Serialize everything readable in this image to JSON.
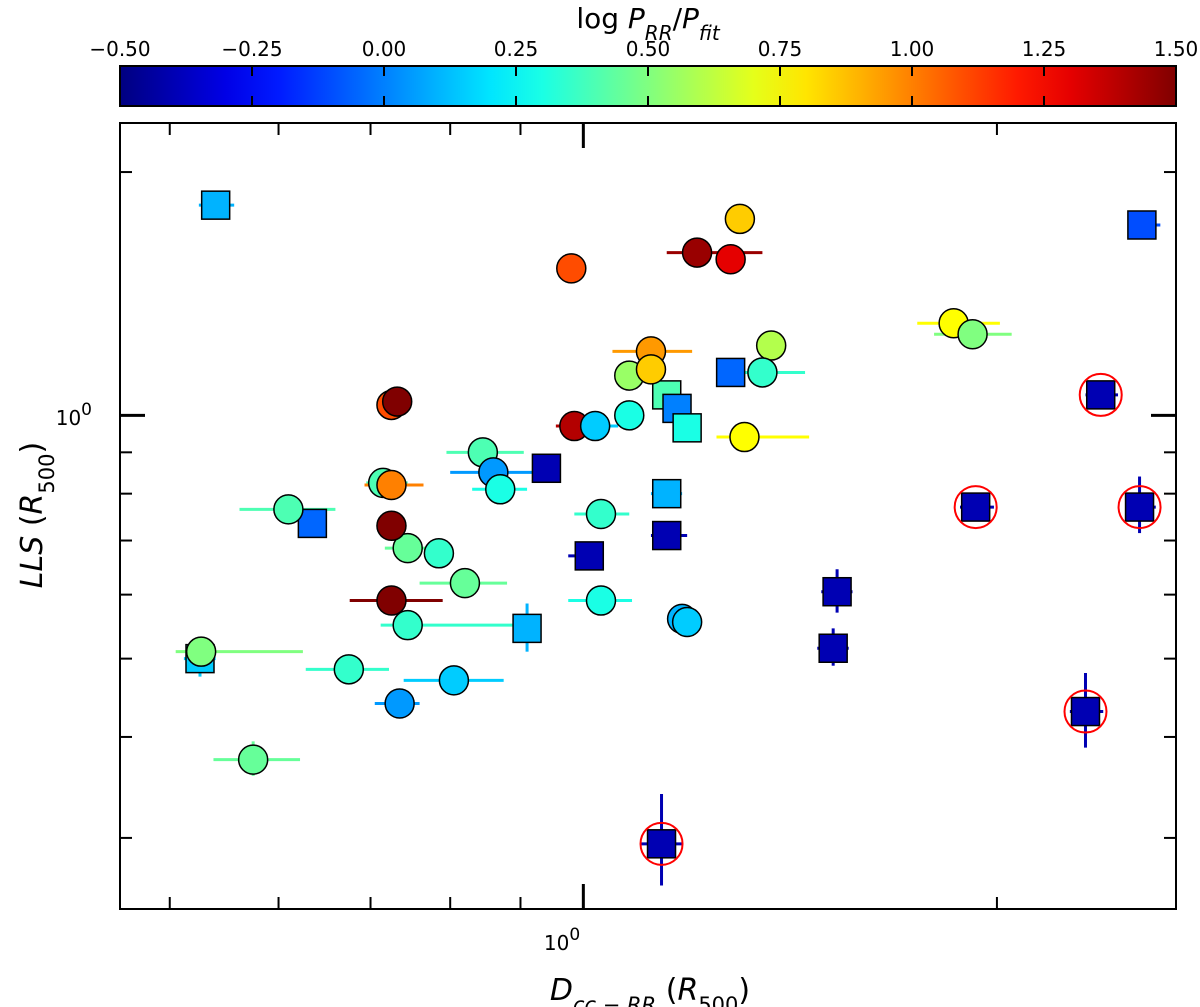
{
  "chart_data": {
    "type": "scatter",
    "colorbar": {
      "title_parts": [
        "log ",
        "P",
        "RR",
        "/",
        "P",
        "fit"
      ],
      "vmin": -0.5,
      "vmax": 1.5,
      "colormap": "jet",
      "ticks": [
        -0.5,
        -0.25,
        0.0,
        0.25,
        0.5,
        0.75,
        1.0,
        1.25,
        1.5
      ],
      "tick_labels": [
        "−0.50",
        "−0.25",
        "0.00",
        "0.25",
        "0.50",
        "0.75",
        "1.00",
        "1.25",
        "1.50"
      ]
    },
    "x_axis": {
      "label_parts": [
        "D",
        "cc − RR",
        " (",
        "R",
        "500",
        ")"
      ],
      "scale": "log",
      "range": [
        0.46,
        2.7
      ],
      "tick_label": "10",
      "tick_label_exp": "0"
    },
    "y_axis": {
      "label_parts": [
        "LLS",
        " (",
        "R",
        "500",
        ")"
      ],
      "scale": "log",
      "range": [
        0.245,
        2.3
      ],
      "tick_label": "10",
      "tick_label_exp": "0"
    },
    "marker_stroke": "#000000",
    "highlight_color": "#ff0000",
    "series": [
      {
        "marker": "square",
        "points": [
          {
            "x": 0.54,
            "y": 1.82,
            "c": 0.1,
            "xerr": [
              0.525,
              0.557
            ]
          },
          {
            "x": 0.635,
            "y": 0.735,
            "c": -0.05,
            "xerr": [
              0.625,
              0.645
            ]
          },
          {
            "x": 0.526,
            "y": 0.5,
            "c": 0.15,
            "xerr": [
              0.512,
              0.54
            ],
            "yerr": [
              0.475,
              0.525
            ]
          },
          {
            "x": 0.91,
            "y": 0.545,
            "c": 0.1,
            "xerr": [
              0.9,
              0.92
            ],
            "yerr": [
              0.51,
              0.585
            ]
          },
          {
            "x": 0.94,
            "y": 0.86,
            "c": -0.4,
            "xerr": [
              0.925,
              0.96
            ],
            "yerr": [
              0.84,
              0.885
            ]
          },
          {
            "x": 1.01,
            "y": 0.67,
            "c": -0.4,
            "xerr": [
              0.975,
              1.035
            ]
          },
          {
            "x": 1.15,
            "y": 0.8,
            "c": 0.1,
            "xerr": [
              1.12,
              1.18
            ]
          },
          {
            "x": 1.15,
            "y": 0.71,
            "c": -0.4,
            "xerr": [
              1.12,
              1.19
            ]
          },
          {
            "x": 1.15,
            "y": 1.06,
            "c": 0.4,
            "xerr": [
              1.13,
              1.17
            ]
          },
          {
            "x": 1.17,
            "y": 1.02,
            "c": 0.0
          },
          {
            "x": 1.19,
            "y": 0.965,
            "c": 0.3
          },
          {
            "x": 1.28,
            "y": 1.13,
            "c": -0.05,
            "xerr": [
              1.25,
              1.31
            ]
          },
          {
            "x": 1.53,
            "y": 0.605,
            "c": -0.4,
            "xerr": [
              1.49,
              1.57
            ],
            "yerr": [
              0.57,
              0.645
            ]
          },
          {
            "x": 1.52,
            "y": 0.515,
            "c": -0.4,
            "xerr": [
              1.48,
              1.56
            ],
            "yerr": [
              0.49,
              0.545
            ]
          },
          {
            "x": 1.14,
            "y": 0.295,
            "c": -0.4,
            "xerr": [
              1.1,
              1.18
            ],
            "yerr": [
              0.262,
              0.34
            ],
            "highlight": true
          },
          {
            "x": 1.93,
            "y": 0.77,
            "c": -0.4,
            "xerr": [
              1.88,
              1.99
            ],
            "highlight": true
          },
          {
            "x": 2.32,
            "y": 0.43,
            "c": -0.4,
            "xerr": [
              2.26,
              2.39
            ],
            "yerr": [
              0.388,
              0.48
            ],
            "highlight": true
          },
          {
            "x": 2.38,
            "y": 1.06,
            "c": -0.4,
            "xerr": [
              2.32,
              2.45
            ],
            "highlight": true
          },
          {
            "x": 2.54,
            "y": 0.77,
            "c": -0.4,
            "xerr": [
              2.48,
              2.61
            ],
            "yerr": [
              0.715,
              0.84
            ],
            "highlight": true
          },
          {
            "x": 2.55,
            "y": 1.72,
            "c": -0.1,
            "xerr": [
              2.49,
              2.63
            ]
          }
        ]
      },
      {
        "marker": "circle",
        "points": [
          {
            "x": 0.527,
            "y": 0.51,
            "c": 0.5,
            "xerr": [
              0.505,
              0.625
            ]
          },
          {
            "x": 0.575,
            "y": 0.375,
            "c": 0.45,
            "xerr": [
              0.538,
              0.622
            ],
            "yerr": [
              0.358,
              0.395
            ]
          },
          {
            "x": 0.61,
            "y": 0.765,
            "c": 0.4,
            "xerr": [
              0.562,
              0.66
            ]
          },
          {
            "x": 0.675,
            "y": 0.485,
            "c": 0.35,
            "xerr": [
              0.628,
              0.722
            ],
            "yerr": [
              0.473,
              0.498
            ]
          },
          {
            "x": 0.745,
            "y": 0.55,
            "c": 0.35,
            "xerr": [
              0.712,
              0.905
            ]
          },
          {
            "x": 0.735,
            "y": 0.44,
            "c": 0.05,
            "xerr": [
              0.705,
              0.76
            ]
          },
          {
            "x": 0.715,
            "y": 0.825,
            "c": 0.4,
            "xerr": [
              0.695,
              0.745
            ]
          },
          {
            "x": 0.725,
            "y": 0.82,
            "c": 1.0,
            "xerr": [
              0.693,
              0.765
            ]
          },
          {
            "x": 0.745,
            "y": 0.685,
            "c": 0.45,
            "xerr": [
              0.717,
              0.78
            ]
          },
          {
            "x": 0.725,
            "y": 0.73,
            "c": 1.5,
            "xerr": [
              0.712,
              0.738
            ]
          },
          {
            "x": 0.725,
            "y": 0.59,
            "c": 1.5,
            "xerr": [
              0.676,
              0.79
            ],
            "yerr": [
              0.57,
              0.61
            ]
          },
          {
            "x": 0.725,
            "y": 1.03,
            "c": 1.1,
            "xerr": [
              0.708,
              0.742
            ]
          },
          {
            "x": 0.732,
            "y": 1.04,
            "c": 1.5,
            "xerr": [
              0.716,
              0.748
            ]
          },
          {
            "x": 0.785,
            "y": 0.675,
            "c": 0.35
          },
          {
            "x": 0.805,
            "y": 0.47,
            "c": 0.15,
            "xerr": [
              0.74,
              0.875
            ],
            "yerr": [
              0.46,
              0.48
            ]
          },
          {
            "x": 0.82,
            "y": 0.62,
            "c": 0.45,
            "xerr": [
              0.76,
              0.88
            ]
          },
          {
            "x": 0.845,
            "y": 0.9,
            "c": 0.4,
            "xerr": [
              0.795,
              0.905
            ]
          },
          {
            "x": 0.86,
            "y": 0.85,
            "c": 0.05,
            "xerr": [
              0.8,
              0.92
            ]
          },
          {
            "x": 0.87,
            "y": 0.81,
            "c": 0.3,
            "xerr": [
              0.83,
              0.91
            ]
          },
          {
            "x": 0.98,
            "y": 1.52,
            "c": 1.1,
            "xerr": [
              0.965,
              0.995
            ]
          },
          {
            "x": 0.985,
            "y": 0.97,
            "c": 1.4,
            "xerr": [
              0.955,
              1.02
            ]
          },
          {
            "x": 1.02,
            "y": 0.97,
            "c": 0.15,
            "xerr": [
              0.975,
              1.06
            ]
          },
          {
            "x": 1.03,
            "y": 0.755,
            "c": 0.35,
            "xerr": [
              0.985,
              1.08
            ]
          },
          {
            "x": 1.03,
            "y": 0.59,
            "c": 0.3,
            "xerr": [
              0.975,
              1.085
            ]
          },
          {
            "x": 1.08,
            "y": 1.0,
            "c": 0.3
          },
          {
            "x": 1.08,
            "y": 1.12,
            "c": 0.55
          },
          {
            "x": 1.12,
            "y": 1.2,
            "c": 0.95,
            "xerr": [
              1.05,
              1.2
            ]
          },
          {
            "x": 1.12,
            "y": 1.14,
            "c": 0.85
          },
          {
            "x": 1.18,
            "y": 0.56,
            "c": 0.1
          },
          {
            "x": 1.19,
            "y": 0.555,
            "c": 0.15
          },
          {
            "x": 1.21,
            "y": 1.59,
            "c": 1.45,
            "xerr": [
              1.15,
              1.35
            ]
          },
          {
            "x": 1.28,
            "y": 1.56,
            "c": 1.3
          },
          {
            "x": 1.3,
            "y": 1.75,
            "c": 0.85
          },
          {
            "x": 1.31,
            "y": 0.94,
            "c": 0.75,
            "xerr": [
              1.25,
              1.46
            ]
          },
          {
            "x": 1.37,
            "y": 1.22,
            "c": 0.6
          },
          {
            "x": 1.35,
            "y": 1.13,
            "c": 0.35,
            "xerr": [
              1.28,
              1.45
            ]
          },
          {
            "x": 1.86,
            "y": 1.3,
            "c": 0.75,
            "xerr": [
              1.75,
              2.01
            ]
          },
          {
            "x": 1.92,
            "y": 1.26,
            "c": 0.5,
            "xerr": [
              1.8,
              2.05
            ]
          }
        ]
      }
    ]
  }
}
